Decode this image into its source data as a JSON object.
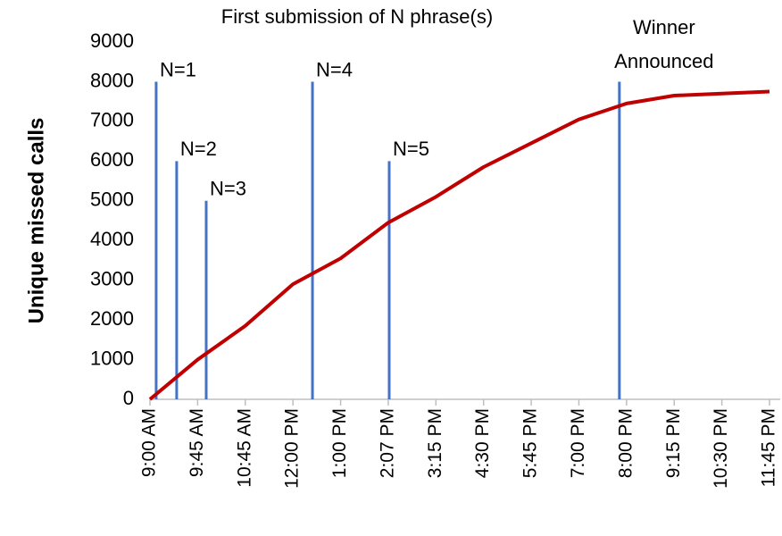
{
  "chart_data": {
    "type": "line",
    "title": "First submission of N phrase(s)",
    "y_label": "Unique missed calls",
    "categories": [
      "9:00 AM",
      "9:45 AM",
      "10:45 AM",
      "12:00 PM",
      "1:00 PM",
      "2:07 PM",
      "3:15 PM",
      "4:30 PM",
      "5:45 PM",
      "7:00 PM",
      "8:00 PM",
      "9:15 PM",
      "10:30 PM",
      "11:45 PM"
    ],
    "series": [
      {
        "color": "#c00000",
        "values": [
          0,
          1000,
          1850,
          2900,
          3550,
          4450,
          5100,
          5850,
          6450,
          7050,
          7450,
          7650,
          7700,
          7750
        ]
      }
    ],
    "events": [
      {
        "label": [
          "N=1"
        ],
        "x": 0.13,
        "value": 8000
      },
      {
        "label": [
          "N=2"
        ],
        "x": 0.56,
        "value": 6000
      },
      {
        "label": [
          "N=3"
        ],
        "x": 1.18,
        "value": 5000
      },
      {
        "label": [
          "N=4"
        ],
        "x": 3.41,
        "value": 8000
      },
      {
        "label": [
          "N=5"
        ],
        "x": 5.02,
        "value": 6000
      },
      {
        "label": [
          "Winner",
          "Announced"
        ],
        "x": 9.85,
        "value": 8000
      }
    ],
    "event_color": "#4472c4",
    "ylim": [
      0,
      9000
    ],
    "yticks": [
      0,
      1000,
      2000,
      3000,
      4000,
      5000,
      6000,
      7000,
      8000,
      9000
    ]
  }
}
